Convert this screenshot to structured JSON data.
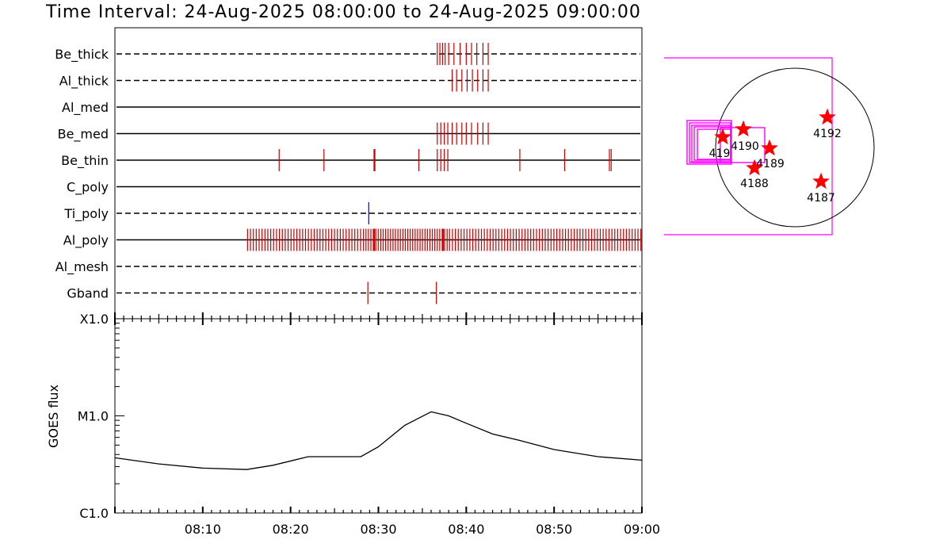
{
  "title": "Time Interval: 24-Aug-2025 08:00:00 to 24-Aug-2025 09:00:00",
  "chart_data": [
    {
      "type": "event-timeline",
      "x_range": [
        "08:00",
        "09:00"
      ],
      "channels": [
        {
          "name": "Be_thick",
          "line": "dashed",
          "color": "#cc0000",
          "events": [
            36.7,
            37.0,
            37.3,
            37.6,
            38.0,
            38.6,
            39.3,
            40.0,
            40.6,
            41.2,
            41.9,
            42.5
          ]
        },
        {
          "name": "Al_thick",
          "line": "dashed",
          "color": "#cc0000",
          "events": [
            38.4,
            38.9,
            39.5,
            40.1,
            40.7,
            41.3,
            41.9,
            42.5
          ]
        },
        {
          "name": "Al_med",
          "line": "solid",
          "color": "#cc0000",
          "events": []
        },
        {
          "name": "Be_med",
          "line": "solid",
          "color": "#cc0000",
          "events": [
            36.7,
            37.1,
            37.5,
            37.9,
            38.4,
            38.9,
            39.5,
            40.0,
            40.6,
            41.3,
            41.9,
            42.5
          ]
        },
        {
          "name": "Be_thin",
          "line": "solid",
          "color": "#cc0000",
          "events": [
            18.7,
            23.8,
            29.5,
            29.6,
            34.6,
            36.7,
            37.1,
            37.5,
            37.9,
            46.1,
            51.2,
            56.3,
            56.5
          ]
        },
        {
          "name": "C_poly",
          "line": "solid",
          "color": "#cc0000",
          "events": []
        },
        {
          "name": "Ti_poly",
          "line": "dashed",
          "color": "#0000cc",
          "events": [
            28.9
          ]
        },
        {
          "name": "Al_poly",
          "line": "solid",
          "color": "#cc0000",
          "events": "every 0.25-0.35 min from 08:15 to 09:00"
        },
        {
          "name": "Al_mesh",
          "line": "dashed",
          "color": "#cc0000",
          "events": []
        },
        {
          "name": "Gband",
          "line": "dashed",
          "color": "#cc0000",
          "events": [
            28.8,
            36.6
          ]
        }
      ],
      "xtick_labels": [
        "08:10",
        "08:20",
        "08:30",
        "08:40",
        "08:50",
        "09:00"
      ]
    },
    {
      "type": "line",
      "ylabel": "GOES flux",
      "yscale": "log",
      "ytick_labels": [
        "C1.0",
        "M1.0",
        "X1.0"
      ],
      "xtick_labels": [
        "08:10",
        "08:20",
        "08:30",
        "08:40",
        "08:50",
        "09:00"
      ],
      "x": [
        0,
        5,
        10,
        15,
        18,
        22,
        25,
        28,
        30,
        33,
        36,
        38,
        40,
        43,
        46,
        50,
        55,
        60
      ],
      "y": [
        3.7e-06,
        3.2e-06,
        2.9e-06,
        2.8e-06,
        3.1e-06,
        3.8e-06,
        3.8e-06,
        3.8e-06,
        4.8e-06,
        8e-06,
        1.1e-05,
        1e-05,
        8.4e-06,
        6.5e-06,
        5.6e-06,
        4.5e-06,
        3.8e-06,
        3.5e-06
      ],
      "color": "#000000"
    }
  ],
  "active_regions": [
    {
      "label": "4192",
      "color": "#ff0000"
    },
    {
      "label": "4190",
      "color": "#ff0000"
    },
    {
      "label": "4189",
      "color": "#ff0000"
    },
    {
      "label": "4188",
      "color": "#ff0000"
    },
    {
      "label": "4187",
      "color": "#ff0000"
    },
    {
      "label": "419",
      "color": "#ff0000"
    }
  ],
  "colors": {
    "fov_box": "#ff00ff",
    "event": "#cc0000",
    "event_blue": "#0000cc"
  }
}
